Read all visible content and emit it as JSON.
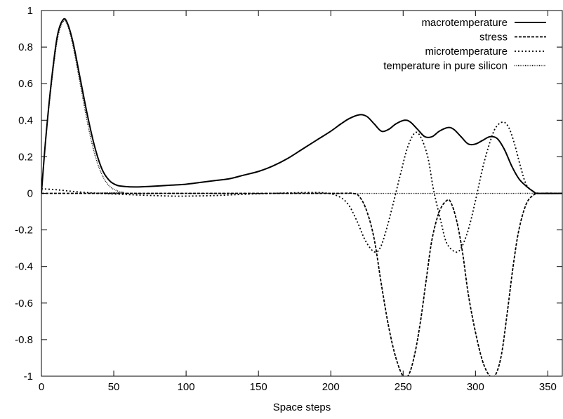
{
  "chart_data": {
    "type": "line",
    "title": "",
    "xlabel": "Space steps",
    "ylabel": "",
    "xlim": [
      0,
      360
    ],
    "ylim": [
      -1,
      1
    ],
    "xticks": [
      0,
      50,
      100,
      150,
      200,
      250,
      300,
      350
    ],
    "yticks": [
      -1,
      -0.8,
      -0.6,
      -0.4,
      -0.2,
      0,
      0.2,
      0.4,
      0.6,
      0.8,
      1
    ],
    "ytick_labels": [
      "-1",
      "-0.8",
      "-0.6",
      "-0.4",
      "-0.2",
      "0",
      "0.2",
      "0.4",
      "0.6",
      "0.8",
      "1"
    ],
    "grid": false,
    "legend_position": "top-right",
    "series": [
      {
        "name": "macrotemperature",
        "style": "solid",
        "points": [
          [
            0,
            0
          ],
          [
            3,
            0.3
          ],
          [
            7,
            0.62
          ],
          [
            11,
            0.86
          ],
          [
            15,
            0.95
          ],
          [
            18,
            0.93
          ],
          [
            22,
            0.82
          ],
          [
            27,
            0.62
          ],
          [
            32,
            0.42
          ],
          [
            37,
            0.25
          ],
          [
            42,
            0.13
          ],
          [
            47,
            0.07
          ],
          [
            52,
            0.045
          ],
          [
            57,
            0.038
          ],
          [
            65,
            0.035
          ],
          [
            75,
            0.038
          ],
          [
            90,
            0.045
          ],
          [
            100,
            0.05
          ],
          [
            110,
            0.06
          ],
          [
            120,
            0.07
          ],
          [
            130,
            0.08
          ],
          [
            140,
            0.1
          ],
          [
            150,
            0.12
          ],
          [
            160,
            0.15
          ],
          [
            170,
            0.19
          ],
          [
            180,
            0.24
          ],
          [
            190,
            0.29
          ],
          [
            200,
            0.34
          ],
          [
            207,
            0.38
          ],
          [
            213,
            0.41
          ],
          [
            220,
            0.43
          ],
          [
            225,
            0.42
          ],
          [
            230,
            0.38
          ],
          [
            235,
            0.34
          ],
          [
            240,
            0.35
          ],
          [
            245,
            0.38
          ],
          [
            251,
            0.4
          ],
          [
            255,
            0.39
          ],
          [
            260,
            0.35
          ],
          [
            265,
            0.31
          ],
          [
            270,
            0.31
          ],
          [
            275,
            0.34
          ],
          [
            281,
            0.36
          ],
          [
            285,
            0.35
          ],
          [
            290,
            0.31
          ],
          [
            295,
            0.27
          ],
          [
            300,
            0.27
          ],
          [
            305,
            0.29
          ],
          [
            310,
            0.31
          ],
          [
            315,
            0.3
          ],
          [
            320,
            0.24
          ],
          [
            325,
            0.15
          ],
          [
            330,
            0.08
          ],
          [
            335,
            0.04
          ],
          [
            340,
            0.01
          ],
          [
            343,
            0
          ],
          [
            360,
            0
          ]
        ]
      },
      {
        "name": "stress",
        "style": "dashed",
        "points": [
          [
            0,
            0
          ],
          [
            100,
            0
          ],
          [
            200,
            0
          ],
          [
            215,
            0
          ],
          [
            220,
            -0.02
          ],
          [
            225,
            -0.1
          ],
          [
            230,
            -0.25
          ],
          [
            235,
            -0.5
          ],
          [
            240,
            -0.73
          ],
          [
            245,
            -0.9
          ],
          [
            250,
            -1
          ],
          [
            254,
            -0.99
          ],
          [
            258,
            -0.88
          ],
          [
            262,
            -0.7
          ],
          [
            266,
            -0.47
          ],
          [
            270,
            -0.25
          ],
          [
            275,
            -0.1
          ],
          [
            280,
            -0.04
          ],
          [
            283,
            -0.05
          ],
          [
            287,
            -0.15
          ],
          [
            291,
            -0.32
          ],
          [
            295,
            -0.55
          ],
          [
            300,
            -0.76
          ],
          [
            305,
            -0.92
          ],
          [
            310,
            -1
          ],
          [
            314,
            -0.99
          ],
          [
            318,
            -0.88
          ],
          [
            322,
            -0.65
          ],
          [
            326,
            -0.4
          ],
          [
            330,
            -0.2
          ],
          [
            335,
            -0.06
          ],
          [
            340,
            -0.01
          ],
          [
            345,
            0
          ],
          [
            360,
            0
          ]
        ]
      },
      {
        "name": "microtemperature",
        "style": "dotted",
        "points": [
          [
            0,
            0.025
          ],
          [
            10,
            0.02
          ],
          [
            20,
            0.012
          ],
          [
            30,
            0.005
          ],
          [
            40,
            0
          ],
          [
            55,
            -0.005
          ],
          [
            70,
            -0.01
          ],
          [
            90,
            -0.015
          ],
          [
            100,
            -0.015
          ],
          [
            120,
            -0.012
          ],
          [
            140,
            -0.005
          ],
          [
            160,
            0
          ],
          [
            180,
            0.004
          ],
          [
            195,
            0.003
          ],
          [
            205,
            -0.015
          ],
          [
            212,
            -0.06
          ],
          [
            218,
            -0.15
          ],
          [
            224,
            -0.26
          ],
          [
            230,
            -0.32
          ],
          [
            234,
            -0.3
          ],
          [
            238,
            -0.21
          ],
          [
            243,
            -0.06
          ],
          [
            248,
            0.1
          ],
          [
            253,
            0.25
          ],
          [
            258,
            0.33
          ],
          [
            262,
            0.31
          ],
          [
            267,
            0.2
          ],
          [
            271,
            0.02
          ],
          [
            276,
            -0.15
          ],
          [
            280,
            -0.27
          ],
          [
            286,
            -0.32
          ],
          [
            290,
            -0.3
          ],
          [
            295,
            -0.2
          ],
          [
            300,
            -0.04
          ],
          [
            305,
            0.14
          ],
          [
            310,
            0.28
          ],
          [
            314,
            0.36
          ],
          [
            319,
            0.39
          ],
          [
            323,
            0.36
          ],
          [
            327,
            0.27
          ],
          [
            331,
            0.15
          ],
          [
            335,
            0.05
          ],
          [
            340,
            0.01
          ],
          [
            345,
            0
          ],
          [
            360,
            0
          ]
        ]
      },
      {
        "name": "temperature in pure silicon",
        "style": "fine-dotted",
        "points": [
          [
            0,
            0
          ],
          [
            3,
            0.3
          ],
          [
            7,
            0.6
          ],
          [
            11,
            0.84
          ],
          [
            15,
            0.94
          ],
          [
            18,
            0.92
          ],
          [
            22,
            0.8
          ],
          [
            27,
            0.59
          ],
          [
            32,
            0.38
          ],
          [
            37,
            0.21
          ],
          [
            42,
            0.1
          ],
          [
            47,
            0.04
          ],
          [
            52,
            0.015
          ],
          [
            57,
            0.005
          ],
          [
            62,
            0
          ],
          [
            360,
            0
          ]
        ]
      }
    ]
  }
}
